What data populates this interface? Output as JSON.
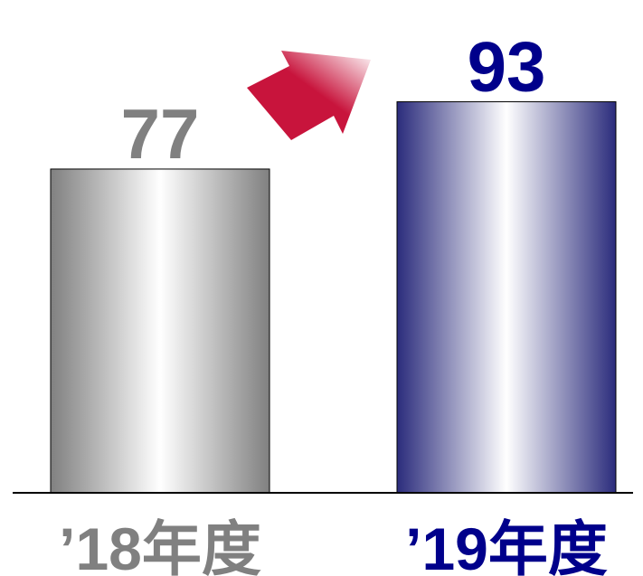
{
  "chart_data": {
    "type": "bar",
    "categories": [
      "’18年度",
      "’19年度"
    ],
    "values": [
      77,
      93
    ],
    "data_labels": [
      "77",
      "93"
    ],
    "title": "",
    "xlabel": "",
    "ylabel": "",
    "ylim": [
      0,
      100
    ],
    "grid": false,
    "legend": "none",
    "colors": {
      "bar_1_edge": "#808080",
      "bar_1_center": "#ffffff",
      "bar_2_edge": "#2b2c7c",
      "bar_2_center": "#ffffff",
      "label_1": "#808080",
      "label_2": "#00008b",
      "arrow": "#c8143c",
      "baseline": "#000000"
    }
  }
}
